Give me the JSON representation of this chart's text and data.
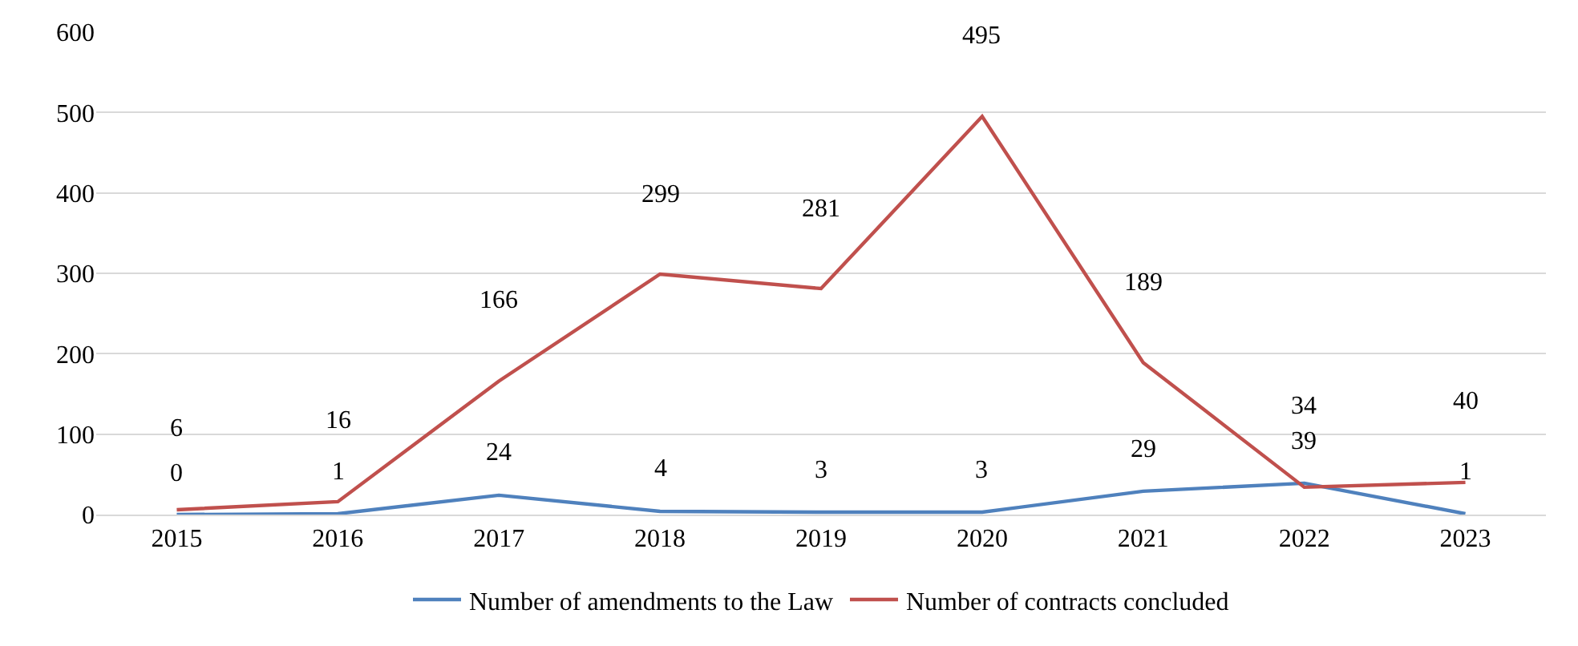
{
  "chart_data": {
    "type": "line",
    "categories": [
      "2015",
      "2016",
      "2017",
      "2018",
      "2019",
      "2020",
      "2021",
      "2022",
      "2023"
    ],
    "series": [
      {
        "name": "Number of amendments to the Law",
        "color": "#4f81bd",
        "values": [
          0,
          1,
          24,
          4,
          3,
          3,
          29,
          39,
          1
        ]
      },
      {
        "name": "Number of contracts concluded",
        "color": "#c0504d",
        "values": [
          6,
          16,
          166,
          299,
          281,
          495,
          189,
          34,
          40
        ]
      }
    ],
    "ylim": [
      0,
      600
    ],
    "yticks": [
      0,
      100,
      200,
      300,
      400,
      500,
      600
    ],
    "grid": "y",
    "legend": "bottom",
    "data_labels": true,
    "marker": "none",
    "line_style": "solid"
  }
}
